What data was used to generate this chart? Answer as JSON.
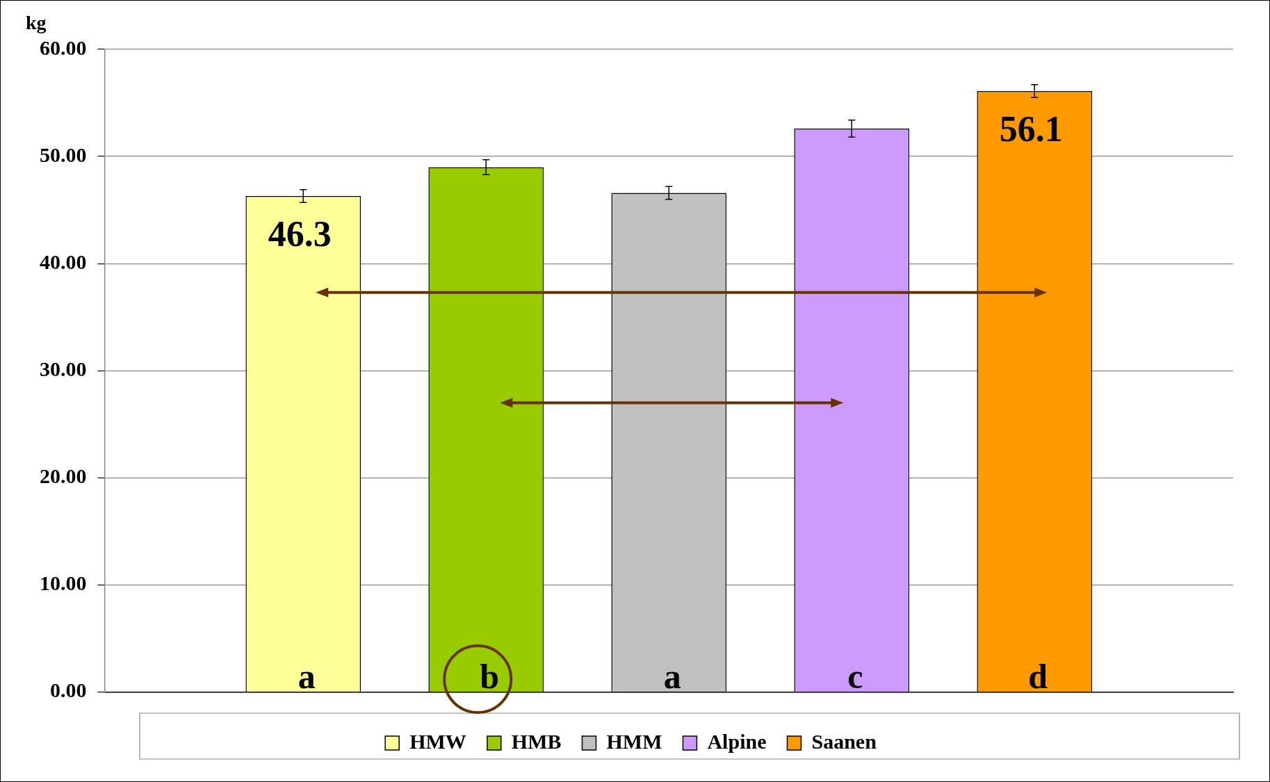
{
  "chart_data": {
    "type": "bar",
    "ylabel": "kg",
    "categories": [
      null
    ],
    "series": [
      {
        "name": "HMW",
        "color": "#ffff99",
        "values": [
          46.3
        ],
        "errors": [
          0.6
        ],
        "value_labels": [
          "46.3"
        ]
      },
      {
        "name": "HMB",
        "color": "#99cc00",
        "values": [
          49.0
        ],
        "errors": [
          0.7
        ]
      },
      {
        "name": "HMM",
        "color": "#c0c0c0",
        "values": [
          46.6
        ],
        "errors": [
          0.6
        ]
      },
      {
        "name": "Alpine",
        "color": "#cc99ff",
        "values": [
          52.6
        ],
        "errors": [
          0.8
        ]
      },
      {
        "name": "Saanen",
        "color": "#ff9900",
        "values": [
          56.1
        ],
        "errors": [
          0.6
        ],
        "value_labels": [
          "56.1"
        ]
      }
    ],
    "ylim": [
      0,
      60
    ],
    "yticks": [
      {
        "value": 0,
        "label": "0.00"
      },
      {
        "value": 10,
        "label": "10.00"
      },
      {
        "value": 20,
        "label": "20.00"
      },
      {
        "value": 30,
        "label": "30.00"
      },
      {
        "value": 40,
        "label": "40.00"
      },
      {
        "value": 50,
        "label": "50.00"
      },
      {
        "value": 60,
        "label": "60.00"
      }
    ],
    "grid": "y",
    "legend": "bottom",
    "annotations": [
      "a",
      "b",
      "a",
      "c",
      "d"
    ]
  }
}
